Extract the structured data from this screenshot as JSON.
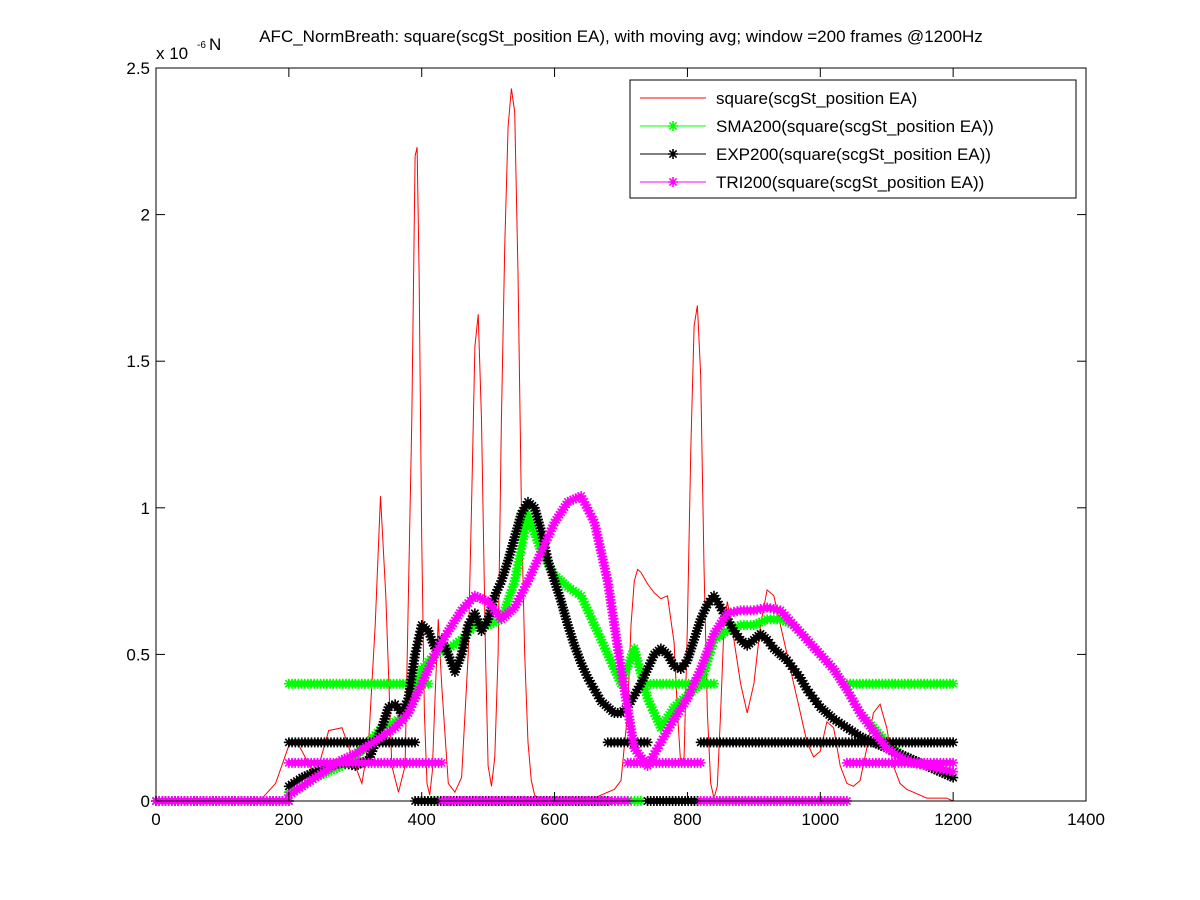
{
  "window": {
    "background": "#ffffff"
  },
  "chart_data": {
    "type": "line",
    "title": "AFC_NormBreath: square(scgSt_position EA), with moving avg; window =200 frames @1200Hz",
    "exponent_label": "x 10",
    "exponent_value": "-6",
    "exponent_unit": "N",
    "xlabel": "",
    "ylabel": "",
    "xlim": [
      0,
      1400
    ],
    "ylim": [
      0,
      2.5
    ],
    "x_ticks": [
      0,
      200,
      400,
      600,
      800,
      1000,
      1200,
      1400
    ],
    "y_ticks": [
      0,
      0.5,
      1,
      1.5,
      2,
      2.5
    ],
    "x_tick_labels": [
      "0",
      "200",
      "400",
      "600",
      "800",
      "1000",
      "1200",
      "1400"
    ],
    "y_tick_labels": [
      "0",
      "0.5",
      "1",
      "1.5",
      "2",
      "2.5"
    ],
    "grid": false,
    "legend_position": "top-right",
    "series": [
      {
        "name": "square(scgSt_position EA)",
        "color": "#ff0000",
        "marker": "none",
        "line_width": 1,
        "x": [
          0,
          140,
          160,
          180,
          200,
          210,
          220,
          240,
          260,
          280,
          300,
          310,
          320,
          330,
          338,
          346,
          355,
          365,
          375,
          385,
          390,
          393,
          396,
          400,
          404,
          408,
          412,
          416,
          420,
          425,
          430,
          440,
          450,
          460,
          470,
          475,
          480,
          485,
          490,
          496,
          500,
          505,
          510,
          515,
          520,
          525,
          530,
          535,
          540,
          545,
          550,
          555,
          560,
          565,
          570,
          575,
          580,
          590,
          600,
          610,
          620,
          630,
          640,
          650,
          660,
          670,
          680,
          690,
          700,
          710,
          715,
          720,
          725,
          730,
          740,
          750,
          760,
          770,
          780,
          785,
          790,
          795,
          800,
          805,
          810,
          815,
          820,
          825,
          830,
          835,
          840,
          845,
          850,
          855,
          860,
          865,
          870,
          880,
          890,
          900,
          910,
          920,
          930,
          940,
          950,
          960,
          970,
          980,
          990,
          1000,
          1010,
          1020,
          1030,
          1040,
          1050,
          1060,
          1070,
          1080,
          1090,
          1100,
          1110,
          1120,
          1130,
          1140,
          1150,
          1160,
          1170,
          1180,
          1190,
          1200
        ],
        "y": [
          0,
          0,
          0.01,
          0.06,
          0.19,
          0.21,
          0.17,
          0.08,
          0.24,
          0.25,
          0.12,
          0.06,
          0.2,
          0.6,
          1.04,
          0.7,
          0.12,
          0.03,
          0.12,
          1.3,
          2.2,
          2.23,
          1.8,
          0.9,
          0.3,
          0.06,
          0.02,
          0.1,
          0.35,
          0.62,
          0.4,
          0.06,
          0.03,
          0.08,
          0.5,
          1.0,
          1.55,
          1.66,
          1.3,
          0.5,
          0.12,
          0.05,
          0.15,
          0.5,
          1.3,
          1.9,
          2.3,
          2.43,
          2.35,
          1.8,
          1.0,
          0.5,
          0.2,
          0.07,
          0.02,
          0.01,
          0.01,
          0.01,
          0.01,
          0.01,
          0.01,
          0.01,
          0.01,
          0.01,
          0.01,
          0.02,
          0.03,
          0.04,
          0.07,
          0.3,
          0.6,
          0.75,
          0.79,
          0.78,
          0.74,
          0.71,
          0.69,
          0.7,
          0.54,
          0.3,
          0.12,
          0.15,
          0.6,
          1.2,
          1.62,
          1.69,
          1.45,
          0.8,
          0.3,
          0.06,
          0.01,
          0.05,
          0.3,
          0.6,
          0.68,
          0.62,
          0.55,
          0.4,
          0.3,
          0.4,
          0.6,
          0.72,
          0.7,
          0.6,
          0.5,
          0.4,
          0.3,
          0.2,
          0.15,
          0.17,
          0.27,
          0.25,
          0.12,
          0.06,
          0.05,
          0.07,
          0.18,
          0.3,
          0.33,
          0.25,
          0.12,
          0.06,
          0.04,
          0.03,
          0.02,
          0.01,
          0.01,
          0.01,
          0.01,
          0.0
        ]
      },
      {
        "name": "SMA200(square(scgSt_position EA))",
        "color": "#00ff00",
        "marker": "*",
        "line_width": 1,
        "segments": [
          {
            "x": [
              0,
              200
            ],
            "y": [
              0,
              0
            ]
          },
          {
            "x": [
              200,
              410
            ],
            "y": [
              0.4,
              0.4
            ]
          },
          {
            "x": [
              410,
              730
            ],
            "y": [
              0,
              0
            ]
          },
          {
            "x": [
              730,
              840
            ],
            "y": [
              0.4,
              0.4
            ]
          },
          {
            "x": [
              840,
              1040
            ],
            "y": [
              0,
              0
            ]
          },
          {
            "x": [
              1040,
              1200
            ],
            "y": [
              0.4,
              0.4
            ]
          },
          {
            "x": [
              200,
              220,
              240,
              260,
              280,
              300,
              320,
              340,
              360,
              380,
              400,
              420,
              440,
              460,
              480,
              500,
              520,
              540,
              560,
              580,
              600,
              620,
              640,
              660,
              680,
              700,
              720,
              740,
              760,
              780,
              800,
              820,
              840,
              860,
              880,
              900,
              920,
              940,
              960,
              980,
              1000,
              1020,
              1040,
              1060,
              1080,
              1100,
              1120,
              1140,
              1160,
              1180,
              1200
            ],
            "y": [
              0.03,
              0.05,
              0.08,
              0.1,
              0.12,
              0.15,
              0.2,
              0.25,
              0.27,
              0.3,
              0.45,
              0.5,
              0.52,
              0.55,
              0.6,
              0.6,
              0.62,
              0.75,
              0.98,
              0.85,
              0.77,
              0.73,
              0.7,
              0.6,
              0.5,
              0.4,
              0.52,
              0.35,
              0.25,
              0.32,
              0.36,
              0.4,
              0.55,
              0.58,
              0.6,
              0.6,
              0.62,
              0.62,
              0.6,
              0.55,
              0.5,
              0.45,
              0.38,
              0.3,
              0.25,
              0.2,
              0.16,
              0.14,
              0.12,
              0.1,
              0.08
            ]
          }
        ]
      },
      {
        "name": "EXP200(square(scgSt_position EA))",
        "color": "#000000",
        "marker": "*",
        "line_width": 1,
        "segments": [
          {
            "x": [
              0,
              200
            ],
            "y": [
              0,
              0
            ]
          },
          {
            "x": [
              200,
              390
            ],
            "y": [
              0.2,
              0.2
            ]
          },
          {
            "x": [
              390,
              680
            ],
            "y": [
              0,
              0
            ]
          },
          {
            "x": [
              680,
              740
            ],
            "y": [
              0.2,
              0.2
            ]
          },
          {
            "x": [
              740,
              820
            ],
            "y": [
              0,
              0
            ]
          },
          {
            "x": [
              820,
              1000
            ],
            "y": [
              0.2,
              0.2
            ]
          },
          {
            "x": [
              1000,
              1200
            ],
            "y": [
              0.2,
              0.2
            ]
          },
          {
            "x": [
              200,
              220,
              240,
              260,
              280,
              300,
              320,
              340,
              350,
              360,
              370,
              380,
              390,
              400,
              410,
              420,
              430,
              440,
              450,
              460,
              470,
              480,
              490,
              500,
              510,
              520,
              530,
              540,
              550,
              560,
              570,
              580,
              590,
              600,
              610,
              620,
              630,
              640,
              650,
              660,
              670,
              680,
              690,
              700,
              710,
              720,
              730,
              740,
              750,
              760,
              770,
              780,
              790,
              800,
              810,
              820,
              830,
              840,
              850,
              860,
              870,
              880,
              890,
              900,
              910,
              920,
              930,
              940,
              950,
              960,
              970,
              980,
              990,
              1000,
              1020,
              1040,
              1060,
              1080,
              1100,
              1120,
              1140,
              1160,
              1180,
              1200
            ],
            "y": [
              0.05,
              0.08,
              0.1,
              0.12,
              0.13,
              0.12,
              0.14,
              0.25,
              0.32,
              0.33,
              0.3,
              0.35,
              0.5,
              0.6,
              0.58,
              0.52,
              0.55,
              0.5,
              0.44,
              0.5,
              0.6,
              0.64,
              0.58,
              0.62,
              0.7,
              0.75,
              0.82,
              0.9,
              0.98,
              1.02,
              1.0,
              0.92,
              0.82,
              0.75,
              0.68,
              0.6,
              0.53,
              0.47,
              0.42,
              0.38,
              0.34,
              0.32,
              0.3,
              0.3,
              0.32,
              0.36,
              0.4,
              0.45,
              0.5,
              0.52,
              0.5,
              0.46,
              0.45,
              0.48,
              0.55,
              0.62,
              0.67,
              0.7,
              0.66,
              0.62,
              0.58,
              0.55,
              0.53,
              0.55,
              0.57,
              0.55,
              0.52,
              0.5,
              0.48,
              0.45,
              0.42,
              0.38,
              0.35,
              0.32,
              0.28,
              0.25,
              0.22,
              0.2,
              0.18,
              0.16,
              0.14,
              0.12,
              0.1,
              0.08
            ]
          }
        ]
      },
      {
        "name": "TRI200(square(scgSt_position EA))",
        "color": "#ff00ff",
        "marker": "*",
        "line_width": 1,
        "segments": [
          {
            "x": [
              0,
              200
            ],
            "y": [
              0,
              0
            ]
          },
          {
            "x": [
              200,
              430
            ],
            "y": [
              0.13,
              0.13
            ]
          },
          {
            "x": [
              430,
              710
            ],
            "y": [
              0,
              0
            ]
          },
          {
            "x": [
              710,
              820
            ],
            "y": [
              0.13,
              0.13
            ]
          },
          {
            "x": [
              820,
              1040
            ],
            "y": [
              0,
              0
            ]
          },
          {
            "x": [
              1040,
              1200
            ],
            "y": [
              0.13,
              0.13
            ]
          },
          {
            "x": [
              200,
              220,
              240,
              260,
              280,
              300,
              320,
              340,
              360,
              380,
              400,
              420,
              440,
              460,
              480,
              500,
              520,
              540,
              560,
              580,
              600,
              620,
              640,
              660,
              680,
              700,
              720,
              740,
              760,
              780,
              800,
              820,
              840,
              860,
              880,
              900,
              920,
              940,
              960,
              980,
              1000,
              1020,
              1040,
              1060,
              1080,
              1100,
              1120,
              1140,
              1160,
              1180,
              1200
            ],
            "y": [
              0.02,
              0.05,
              0.08,
              0.11,
              0.14,
              0.16,
              0.19,
              0.22,
              0.25,
              0.3,
              0.4,
              0.5,
              0.58,
              0.65,
              0.7,
              0.68,
              0.62,
              0.66,
              0.75,
              0.85,
              0.95,
              1.02,
              1.04,
              0.95,
              0.75,
              0.45,
              0.18,
              0.12,
              0.2,
              0.28,
              0.35,
              0.45,
              0.57,
              0.64,
              0.65,
              0.65,
              0.66,
              0.65,
              0.6,
              0.55,
              0.5,
              0.45,
              0.38,
              0.3,
              0.24,
              0.18,
              0.15,
              0.13,
              0.12,
              0.11,
              0.1
            ]
          }
        ]
      }
    ]
  }
}
